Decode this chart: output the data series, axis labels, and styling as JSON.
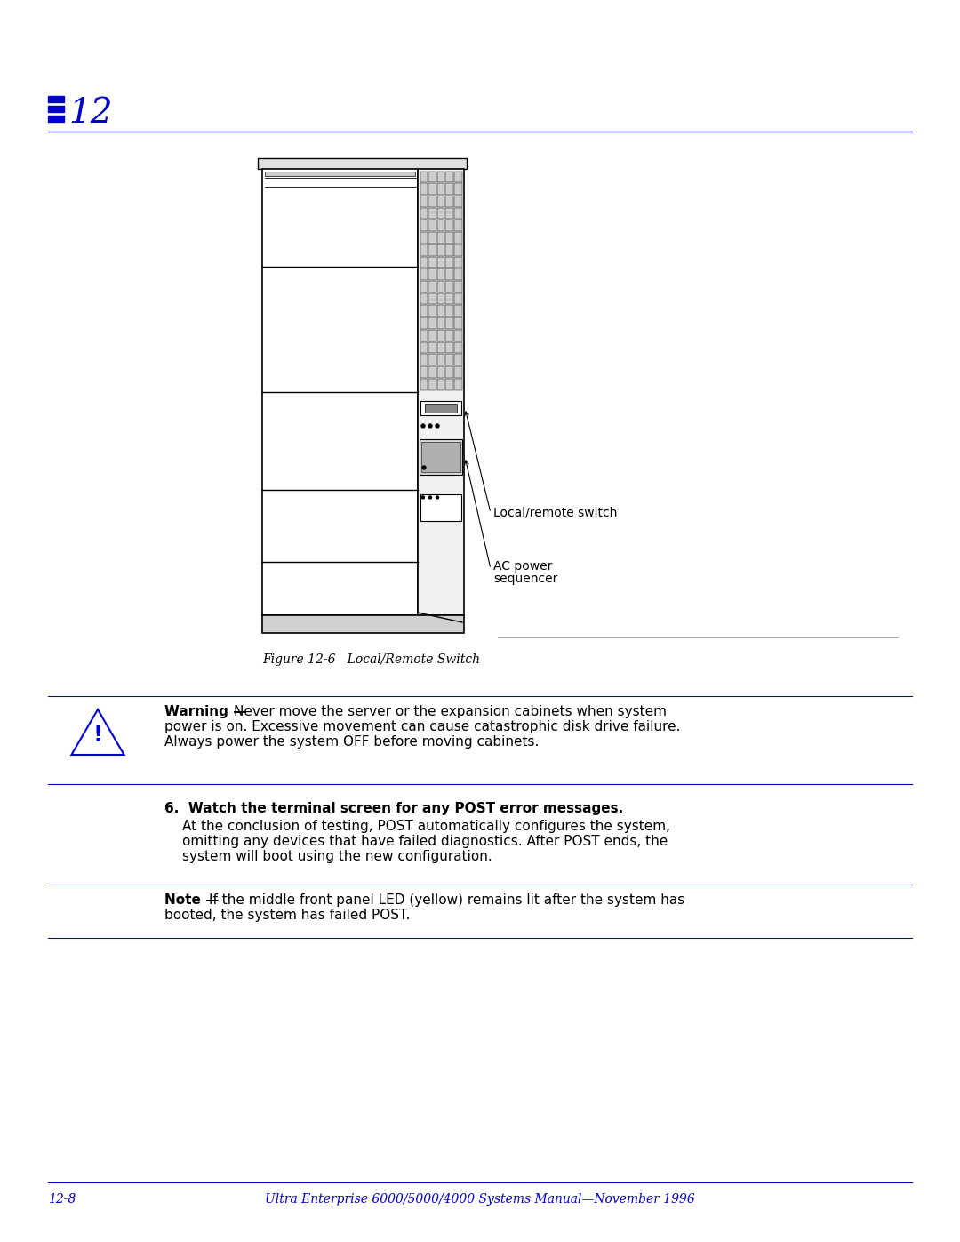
{
  "bg_color": "#ffffff",
  "blue_color": "#0000cc",
  "black_color": "#000000",
  "gray_color": "#999999",
  "chapter_number": "12",
  "figure_caption": "Figure 12-6   Local/Remote Switch",
  "warning_bold": "Warning ",
  "warning_dash": "—",
  "warning_body": "Never move the server or the expansion cabinets when system\npower is on. Excessive movement can cause catastrophic disk drive failure.\nAlways power the system OFF before moving cabinets.",
  "step_label": "6.",
  "step_bold": "Watch the terminal screen for any POST error messages.",
  "step_body": "At the conclusion of testing, POST automatically configures the system,\nomitting any devices that have failed diagnostics. After POST ends, the\nsystem will boot using the new configuration.",
  "note_bold": "Note ",
  "note_dash": "—",
  "note_body": "If the middle front panel LED (yellow) remains lit after the system has\nbooted, the system has failed POST.",
  "footer_left": "12-8",
  "footer_center": "Ultra Enterprise 6000/5000/4000 Systems Manual—November 1996",
  "label_local_remote": "Local/remote switch",
  "label_ac_power_1": "AC power",
  "label_ac_power_2": "sequencer"
}
